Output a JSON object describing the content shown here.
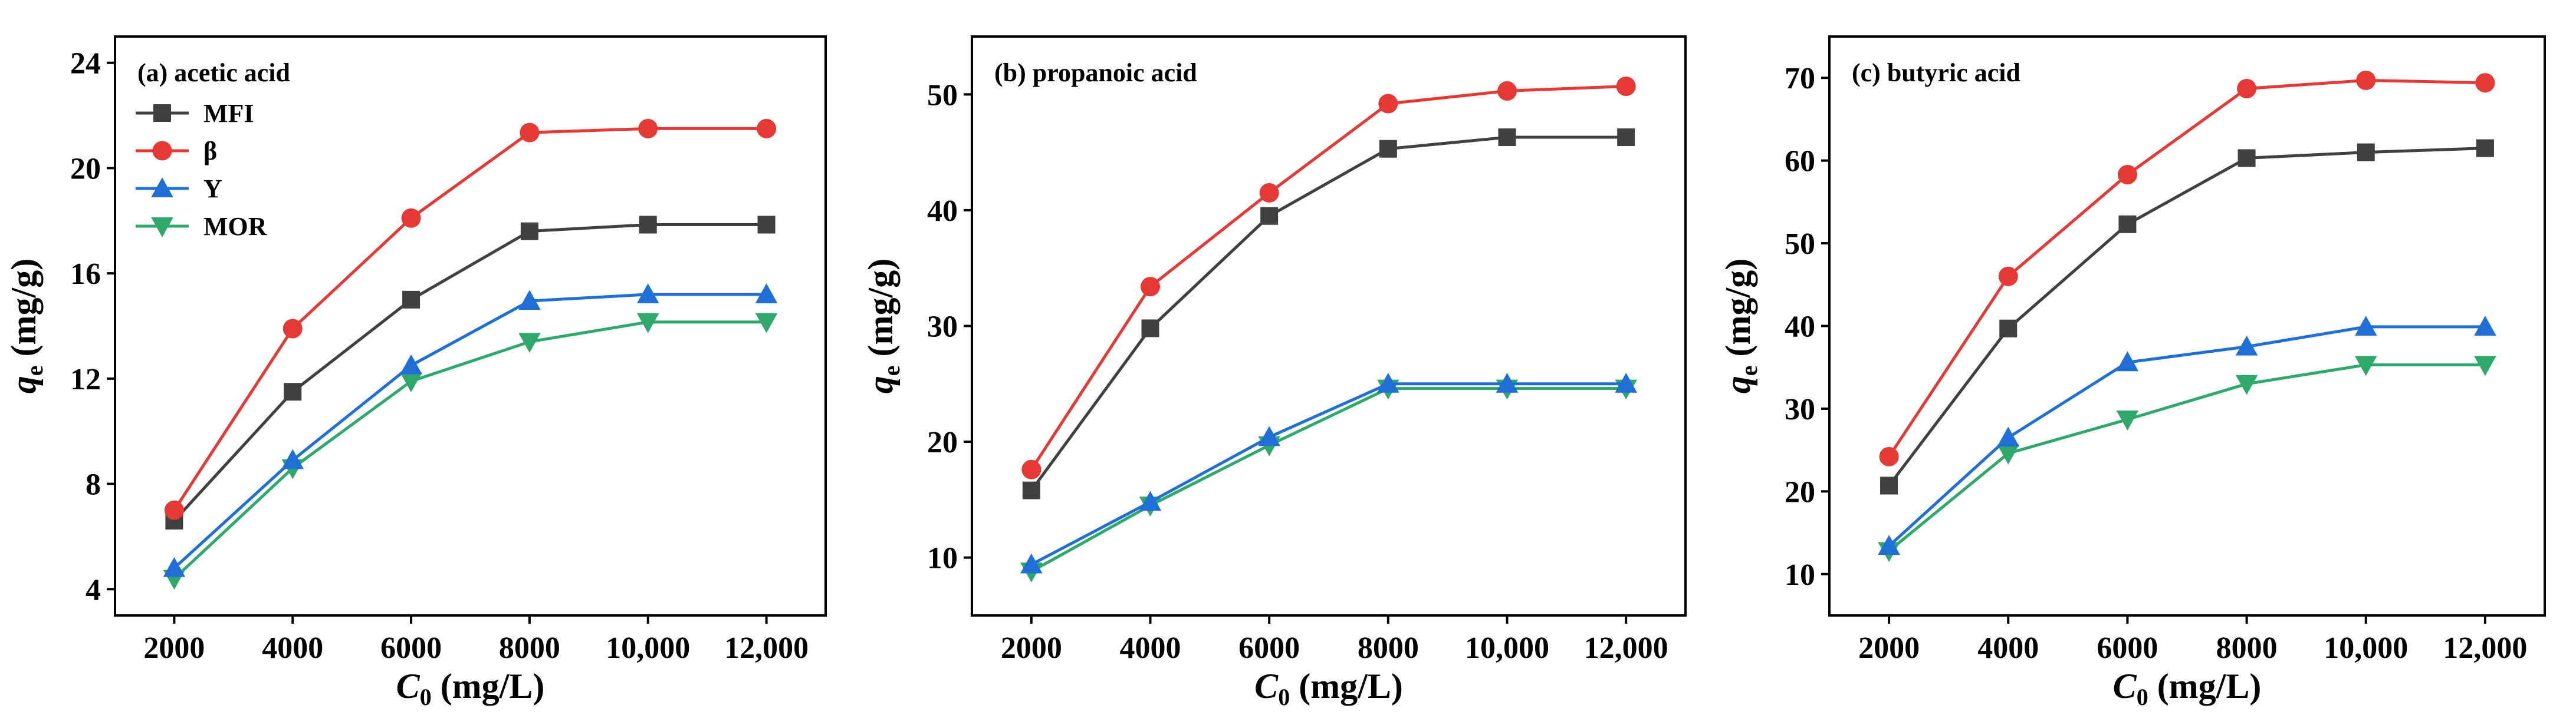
{
  "chart_data": [
    {
      "type": "line",
      "title": "(a) acetic acid",
      "xlabel": "C0 (mg/L)",
      "ylabel": "qe (mg/g)",
      "x": [
        2000,
        4000,
        6000,
        8000,
        10000,
        12000
      ],
      "x_tick_labels": [
        "2000",
        "4000",
        "6000",
        "8000",
        "10,000",
        "12,000"
      ],
      "xlim": [
        1000,
        13000
      ],
      "ylim": [
        3,
        25
      ],
      "y_ticks": [
        4,
        8,
        12,
        16,
        20,
        24
      ],
      "series": [
        {
          "name": "MFI",
          "color": "#404040",
          "marker": "square",
          "values": [
            6.6,
            11.5,
            15.0,
            17.6,
            17.85,
            17.85
          ]
        },
        {
          "name": "β",
          "color": "#e53935",
          "marker": "circle",
          "values": [
            7.0,
            13.9,
            18.1,
            21.35,
            21.5,
            21.5
          ]
        },
        {
          "name": "Y",
          "color": "#1f6fd6",
          "marker": "triangle-up",
          "values": [
            4.8,
            8.9,
            12.5,
            14.95,
            15.2,
            15.2
          ]
        },
        {
          "name": "MOR",
          "color": "#2ea86b",
          "marker": "triangle-down",
          "values": [
            4.4,
            8.6,
            11.9,
            13.4,
            14.15,
            14.15
          ]
        }
      ],
      "legend": "top-left",
      "grid": false
    },
    {
      "type": "line",
      "title": "(b) propanoic acid",
      "xlabel": "C0 (mg/L)",
      "ylabel": "qe (mg/g)",
      "x": [
        2000,
        4000,
        6000,
        8000,
        10000,
        12000
      ],
      "x_tick_labels": [
        "2000",
        "4000",
        "6000",
        "8000",
        "10,000",
        "12,000"
      ],
      "xlim": [
        1000,
        13000
      ],
      "ylim": [
        5,
        55
      ],
      "y_ticks": [
        10,
        20,
        30,
        40,
        50
      ],
      "series": [
        {
          "name": "MFI",
          "color": "#404040",
          "marker": "square",
          "values": [
            15.8,
            29.8,
            39.5,
            45.3,
            46.3,
            46.3
          ]
        },
        {
          "name": "β",
          "color": "#e53935",
          "marker": "circle",
          "values": [
            17.6,
            33.4,
            41.5,
            49.2,
            50.3,
            50.7
          ]
        },
        {
          "name": "Y",
          "color": "#1f6fd6",
          "marker": "triangle-up",
          "values": [
            9.4,
            14.8,
            20.4,
            25.0,
            25.0,
            25.0
          ]
        },
        {
          "name": "MOR",
          "color": "#2ea86b",
          "marker": "triangle-down",
          "values": [
            8.8,
            14.5,
            19.7,
            24.6,
            24.6,
            24.6
          ]
        }
      ],
      "grid": false
    },
    {
      "type": "line",
      "title": "(c) butyric acid",
      "xlabel": "C0 (mg/L)",
      "ylabel": "qe (mg/g)",
      "x": [
        2000,
        4000,
        6000,
        8000,
        10000,
        12000
      ],
      "x_tick_labels": [
        "2000",
        "4000",
        "6000",
        "8000",
        "10,000",
        "12,000"
      ],
      "xlim": [
        1000,
        13000
      ],
      "ylim": [
        5,
        75
      ],
      "y_ticks": [
        10,
        20,
        30,
        40,
        50,
        60,
        70
      ],
      "series": [
        {
          "name": "MFI",
          "color": "#404040",
          "marker": "square",
          "values": [
            20.7,
            39.7,
            52.3,
            60.3,
            61.0,
            61.5
          ]
        },
        {
          "name": "β",
          "color": "#e53935",
          "marker": "circle",
          "values": [
            24.2,
            46.0,
            58.3,
            68.7,
            69.7,
            69.4
          ]
        },
        {
          "name": "Y",
          "color": "#1f6fd6",
          "marker": "triangle-up",
          "values": [
            13.4,
            26.5,
            35.6,
            37.5,
            39.9,
            39.9
          ]
        },
        {
          "name": "MOR",
          "color": "#2ea86b",
          "marker": "triangle-down",
          "values": [
            12.8,
            24.6,
            28.7,
            33.0,
            35.3,
            35.3
          ]
        }
      ],
      "grid": false
    }
  ]
}
